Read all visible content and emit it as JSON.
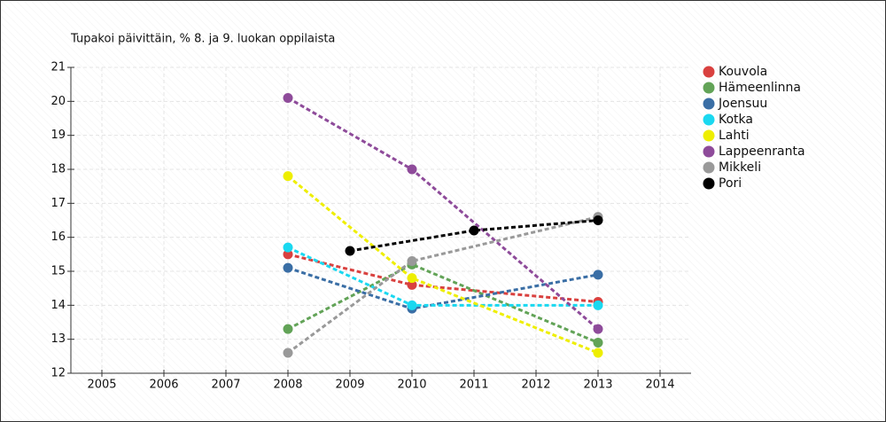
{
  "chart_data": {
    "type": "line",
    "title": "Tupakoi päivittäin, % 8. ja 9. luokan oppilaista",
    "xlim": [
      2004.5,
      2014.5
    ],
    "xticks": [
      2005,
      2006,
      2007,
      2008,
      2009,
      2010,
      2011,
      2012,
      2013,
      2014
    ],
    "ylim": [
      12,
      21
    ],
    "yticks": [
      12,
      13,
      14,
      15,
      16,
      17,
      18,
      19,
      20,
      21
    ],
    "grid": true,
    "legend": "right",
    "series": [
      {
        "name": "Kouvola",
        "color": "#d9413f",
        "x": [
          2008,
          2010,
          2013
        ],
        "values": [
          15.5,
          14.6,
          14.1
        ]
      },
      {
        "name": "Hämeenlinna",
        "color": "#62a357",
        "x": [
          2008,
          2010,
          2013
        ],
        "values": [
          13.3,
          15.2,
          12.9
        ]
      },
      {
        "name": "Joensuu",
        "color": "#3a6ea5",
        "x": [
          2008,
          2010,
          2013
        ],
        "values": [
          15.1,
          13.9,
          14.9
        ]
      },
      {
        "name": "Kotka",
        "color": "#1ad8f0",
        "x": [
          2008,
          2010,
          2013
        ],
        "values": [
          15.7,
          14.0,
          14.0
        ]
      },
      {
        "name": "Lahti",
        "color": "#eeee00",
        "x": [
          2008,
          2010,
          2013
        ],
        "values": [
          17.8,
          14.8,
          12.6
        ]
      },
      {
        "name": "Lappeenranta",
        "color": "#8e4b9a",
        "x": [
          2008,
          2010,
          2013
        ],
        "values": [
          20.1,
          18.0,
          13.3
        ]
      },
      {
        "name": "Mikkeli",
        "color": "#999999",
        "x": [
          2008,
          2010,
          2013
        ],
        "values": [
          12.6,
          15.3,
          16.6
        ]
      },
      {
        "name": "Pori",
        "color": "#000000",
        "x": [
          2009,
          2011,
          2013
        ],
        "values": [
          15.6,
          16.2,
          16.5
        ]
      }
    ]
  }
}
